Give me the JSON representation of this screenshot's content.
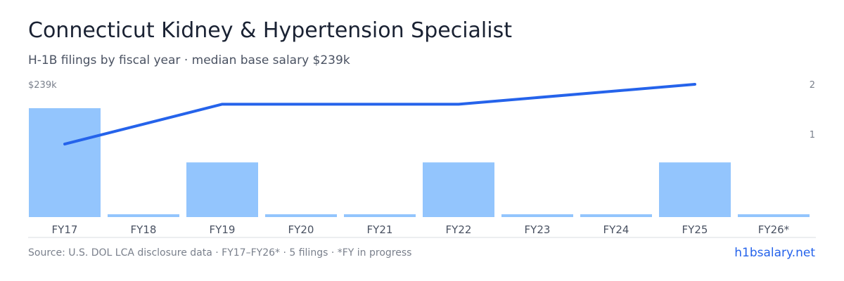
{
  "header": {
    "title": "Connecticut Kidney & Hypertension Specialist",
    "subtitle": "H-1B filings by fiscal year · median base salary $239k"
  },
  "footer": {
    "source": "Source: U.S. DOL LCA disclosure data · FY17–FY26* · 5 filings · *FY in progress",
    "brand": "h1bsalary.net"
  },
  "colors": {
    "bar": "#93c5fd",
    "line": "#2563eb",
    "axis": "#d9dce2"
  },
  "chart_data": {
    "type": "bar",
    "categories": [
      "FY17",
      "FY18",
      "FY19",
      "FY20",
      "FY21",
      "FY22",
      "FY23",
      "FY24",
      "FY25",
      "FY26*"
    ],
    "series": [
      {
        "type": "bar",
        "axis": "left",
        "values": [
          239,
          0,
          120,
          0,
          0,
          120,
          0,
          0,
          120,
          0
        ]
      },
      {
        "type": "line",
        "axis": "right",
        "values": [
          1.1,
          null,
          1.7,
          null,
          null,
          1.7,
          null,
          null,
          2.0,
          null
        ]
      }
    ],
    "left_axis": {
      "ticks": [
        "$239k"
      ],
      "range": [
        0,
        239
      ]
    },
    "right_axis": {
      "ticks": [
        "2",
        "1"
      ],
      "range": [
        0,
        2
      ]
    },
    "grid": false,
    "legend": "none"
  }
}
